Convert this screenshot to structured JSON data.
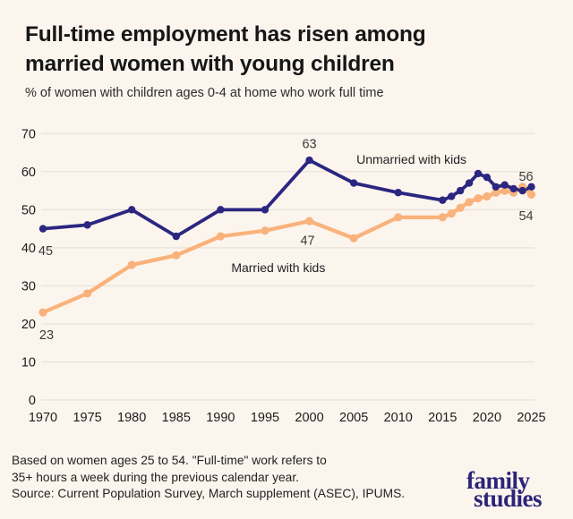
{
  "theme": {
    "background": "#FCF5EE",
    "grid_color": "#E7E1DA",
    "tick_text_color": "#1C1C1C",
    "annotation_color": "#1F1F1F",
    "point_label_color": "#3C3C3C"
  },
  "header": {
    "title_line1": "Full-time employment has risen among",
    "title_line2": "married women with young children",
    "subtitle": "% of women with children ages 0-4 at home who work full time"
  },
  "footer": {
    "line1": "Based on women ages 25 to 54. \"Full-time\" work refers to",
    "line2": "35+ hours a week  during the previous calendar year.",
    "line3": "Source: Current Population Survey, March supplement (ASEC), IPUMS."
  },
  "logo": {
    "line1": "family",
    "line2": "studies",
    "color": "#2B2478"
  },
  "chart_data": {
    "type": "line",
    "title": "Full-time employment has risen among married women with young children",
    "subtitle": "% of women with children ages 0-4 at home who work full time",
    "xlabel": "",
    "ylabel": "",
    "xlim": [
      1970,
      2025
    ],
    "ylim": [
      0,
      70
    ],
    "xticks": [
      1970,
      1975,
      1980,
      1985,
      1990,
      1995,
      2000,
      2005,
      2010,
      2015,
      2020,
      2025
    ],
    "yticks": [
      0,
      10,
      20,
      30,
      40,
      50,
      60,
      70
    ],
    "grid": true,
    "legend_position": "inline-annotations",
    "series": [
      {
        "name": "Unmarried with kids",
        "color": "#2B2680",
        "line_width": 3.8,
        "marker_radius": 4.2,
        "points": [
          [
            1970,
            45
          ],
          [
            1975,
            46
          ],
          [
            1980,
            50
          ],
          [
            1985,
            43
          ],
          [
            1990,
            50
          ],
          [
            1995,
            50
          ],
          [
            2000,
            63
          ],
          [
            2005,
            57
          ],
          [
            2010,
            54.5
          ],
          [
            2015,
            52.5
          ],
          [
            2016,
            53.5
          ],
          [
            2017,
            55
          ],
          [
            2018,
            57
          ],
          [
            2019,
            59.5
          ],
          [
            2020,
            58.5
          ],
          [
            2021,
            56
          ],
          [
            2022,
            56.5
          ],
          [
            2023,
            55.5
          ],
          [
            2024,
            55
          ],
          [
            2025,
            56
          ]
        ]
      },
      {
        "name": "Married with kids",
        "color": "#F9B27B",
        "line_width": 4.3,
        "marker_radius": 4.6,
        "points": [
          [
            1970,
            23
          ],
          [
            1975,
            28
          ],
          [
            1980,
            35.5
          ],
          [
            1985,
            38
          ],
          [
            1990,
            43
          ],
          [
            1995,
            44.5
          ],
          [
            2000,
            47
          ],
          [
            2005,
            42.5
          ],
          [
            2010,
            48
          ],
          [
            2015,
            48
          ],
          [
            2016,
            49
          ],
          [
            2017,
            50.5
          ],
          [
            2018,
            52
          ],
          [
            2019,
            53
          ],
          [
            2020,
            53.5
          ],
          [
            2021,
            54.5
          ],
          [
            2022,
            55
          ],
          [
            2023,
            54.5
          ],
          [
            2024,
            56
          ],
          [
            2025,
            54
          ]
        ]
      }
    ],
    "annotations": [
      {
        "text": "Unmarried with kids",
        "x": 2011.5,
        "y": 63.2
      },
      {
        "text": "Married with kids",
        "x": 1996.5,
        "y": 34.8
      }
    ],
    "point_labels": [
      {
        "text": "45",
        "x": 1970.3,
        "y": 39.3
      },
      {
        "text": "23",
        "x": 1970.4,
        "y": 17.2
      },
      {
        "text": "63",
        "x": 2000.0,
        "y": 67.4
      },
      {
        "text": "47",
        "x": 1999.8,
        "y": 42.0
      },
      {
        "text": "56",
        "x": 2024.4,
        "y": 58.8
      },
      {
        "text": "54",
        "x": 2024.4,
        "y": 48.4
      }
    ]
  }
}
